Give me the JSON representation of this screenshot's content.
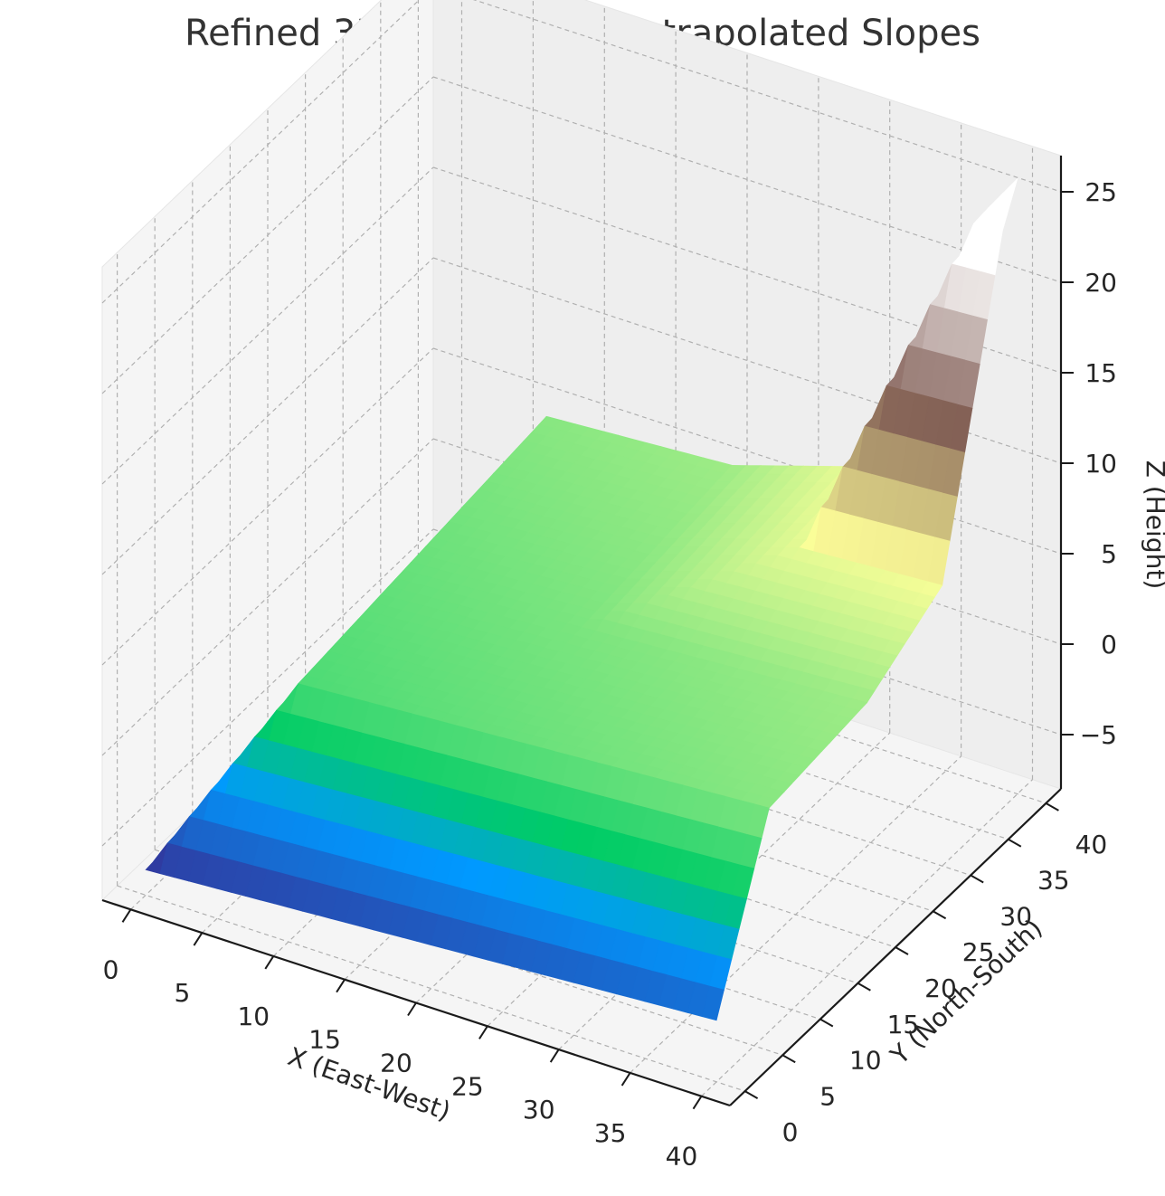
{
  "chart_data": {
    "type": "surface",
    "title": "Refined 3D Terrain with Extrapolated Slopes",
    "xlabel": "X (East-West)",
    "ylabel": "Y (North-South)",
    "zlabel": "Z (Height)",
    "x_ticks": [
      0,
      5,
      10,
      15,
      20,
      25,
      30,
      35,
      40
    ],
    "y_ticks": [
      0,
      5,
      10,
      15,
      20,
      25,
      30,
      35,
      40
    ],
    "z_ticks": [
      -5,
      0,
      5,
      10,
      15,
      20,
      25
    ],
    "xlim": [
      -2,
      42
    ],
    "ylim": [
      -2,
      42
    ],
    "zlim": [
      -8,
      27
    ],
    "grid": true,
    "colormap": "terrain",
    "surface": {
      "x_range": [
        0,
        40
      ],
      "y_range": [
        0,
        40
      ],
      "profile_points_t": [
        0,
        7,
        20,
        30,
        38,
        40
      ],
      "profile_height_z": [
        -6.6,
        2,
        2,
        4,
        20,
        22
      ],
      "slope_along_x": 0.05,
      "slope_along_y": 0.05,
      "z_color_range": [
        -6.6,
        22
      ]
    }
  }
}
